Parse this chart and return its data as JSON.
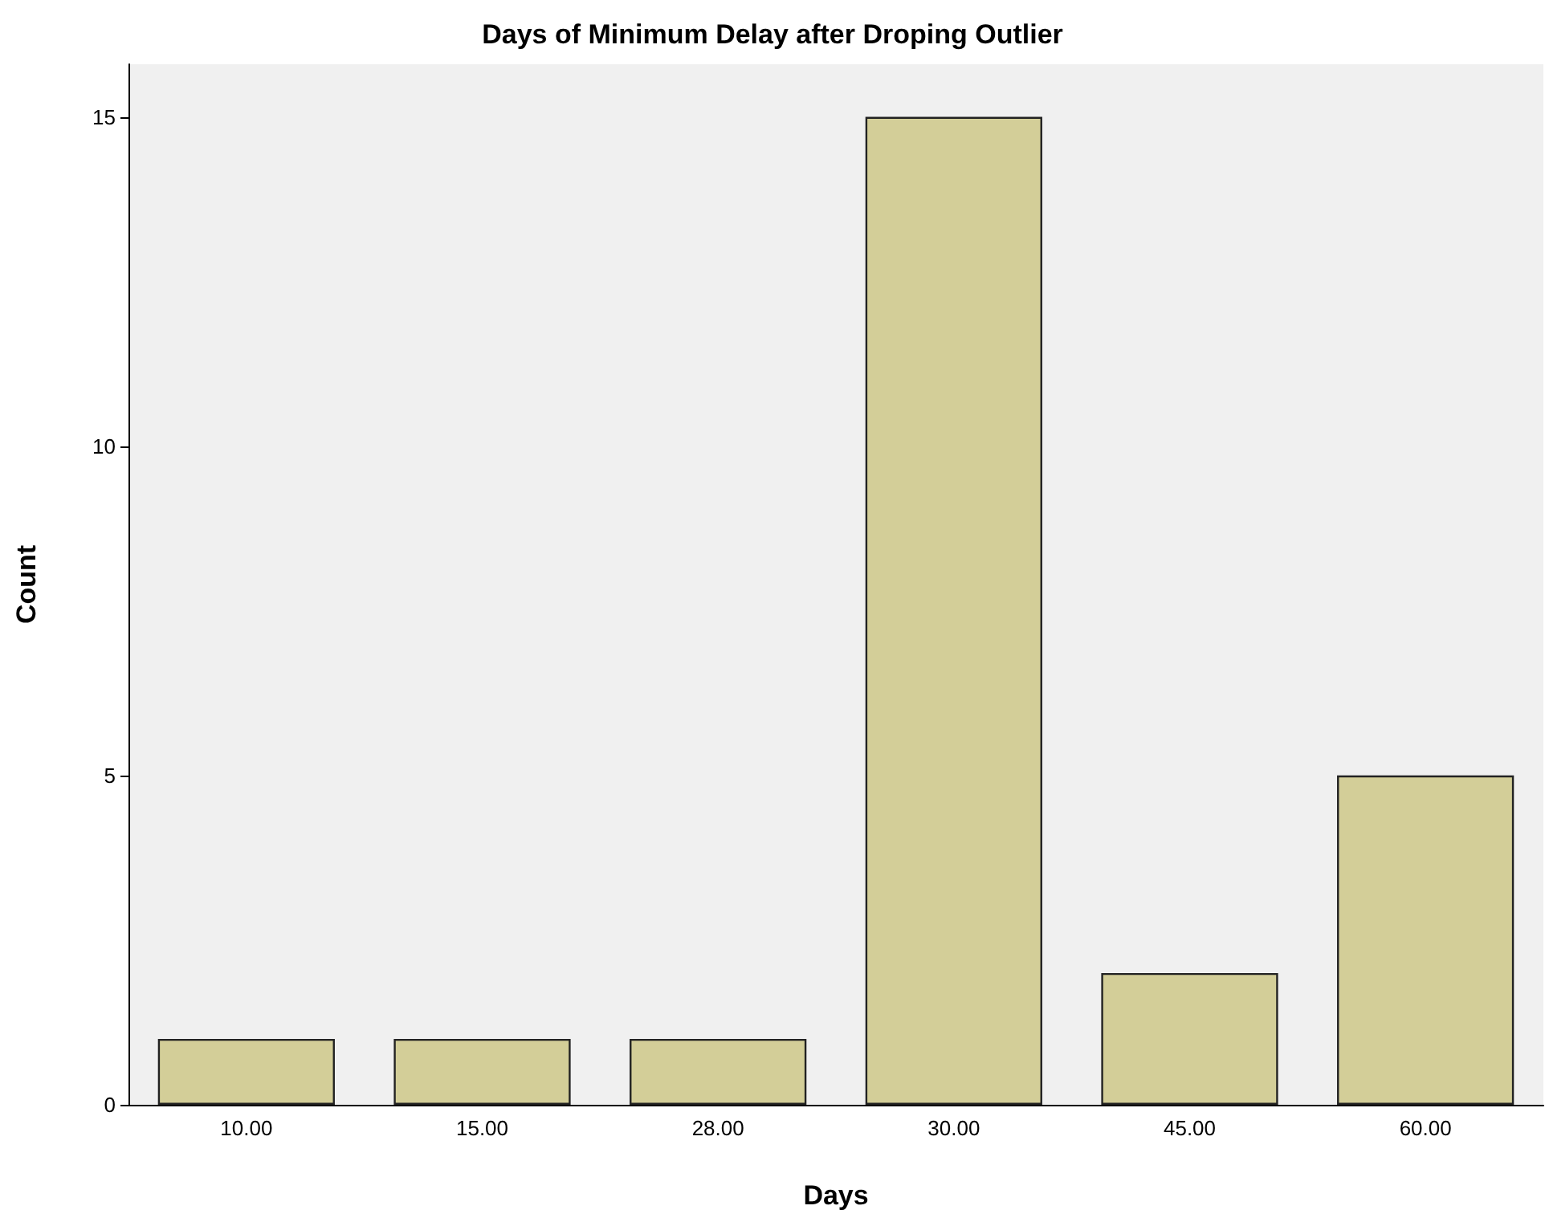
{
  "chart_data": {
    "type": "bar",
    "title": "Days of Minimum Delay after Droping Outlier",
    "xlabel": "Days",
    "ylabel": "Count",
    "categories": [
      "10.00",
      "15.00",
      "28.00",
      "30.00",
      "45.00",
      "60.00"
    ],
    "values": [
      1,
      1,
      1,
      15,
      2,
      5
    ],
    "color": "#d3ce98",
    "ylim": [
      0,
      15.8
    ],
    "yticks": [
      0,
      5,
      10,
      15
    ],
    "grid": false
  }
}
